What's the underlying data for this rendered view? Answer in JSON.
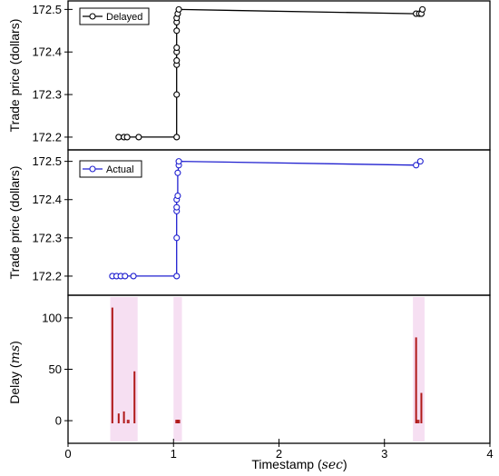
{
  "chart_data": [
    {
      "type": "line",
      "ylabel": "Trade price (dollars)",
      "xlim": [
        0,
        4
      ],
      "ylim": [
        172.17,
        172.52
      ],
      "yticks": [
        172.2,
        172.3,
        172.4,
        172.5
      ],
      "ytick_labels": [
        "172.2",
        "172.3",
        "172.4",
        "172.5"
      ],
      "series": [
        {
          "name": "Delayed",
          "color": "#000000",
          "marker": "open-circle",
          "x": [
            0.48,
            0.53,
            0.56,
            0.67,
            1.03,
            1.03,
            1.03,
            1.03,
            1.03,
            1.03,
            1.03,
            1.03,
            1.03,
            1.04,
            1.05,
            3.3,
            3.33,
            3.35,
            3.36
          ],
          "y": [
            172.2,
            172.2,
            172.2,
            172.2,
            172.2,
            172.3,
            172.37,
            172.38,
            172.4,
            172.41,
            172.45,
            172.47,
            172.48,
            172.49,
            172.5,
            172.49,
            172.49,
            172.49,
            172.5
          ]
        }
      ],
      "legend_position": "top-left",
      "grid": false
    },
    {
      "type": "line",
      "ylabel": "Trade price (dollars)",
      "xlim": [
        0,
        4
      ],
      "ylim": [
        172.15,
        172.53
      ],
      "yticks": [
        172.2,
        172.3,
        172.4,
        172.5
      ],
      "ytick_labels": [
        "172.2",
        "172.3",
        "172.4",
        "172.5"
      ],
      "series": [
        {
          "name": "Actual",
          "color": "#2020d0",
          "marker": "open-circle",
          "x": [
            0.42,
            0.46,
            0.5,
            0.54,
            0.62,
            1.03,
            1.03,
            1.03,
            1.03,
            1.03,
            1.04,
            1.04,
            1.05,
            1.05,
            3.3,
            3.34
          ],
          "y": [
            172.2,
            172.2,
            172.2,
            172.2,
            172.2,
            172.2,
            172.3,
            172.37,
            172.38,
            172.4,
            172.41,
            172.47,
            172.49,
            172.5,
            172.49,
            172.5
          ]
        }
      ],
      "legend_position": "top-left",
      "grid": false
    },
    {
      "type": "bar",
      "xlabel_prefix": "Timestamp (",
      "xlabel_var": "sec",
      "xlabel_suffix": ")",
      "ylabel_prefix": "Delay (",
      "ylabel_var": "ms",
      "ylabel_suffix": ")",
      "xlim": [
        0,
        4
      ],
      "ylim": [
        -22,
        122
      ],
      "xticks": [
        0,
        1,
        2,
        3,
        4
      ],
      "xtick_labels": [
        "0",
        "1",
        "2",
        "3",
        "4"
      ],
      "yticks": [
        0,
        50,
        100
      ],
      "ytick_labels": [
        "0",
        "50",
        "100"
      ],
      "bar_color": "#b01818",
      "highlight_color": "#f6dff2",
      "x": [
        0.42,
        0.48,
        0.53,
        0.57,
        0.63,
        1.03,
        1.04,
        1.05,
        3.3,
        3.32,
        3.35
      ],
      "values": [
        110,
        7,
        9,
        0,
        48,
        0,
        0,
        0,
        81,
        0,
        27
      ],
      "grid": false
    }
  ]
}
